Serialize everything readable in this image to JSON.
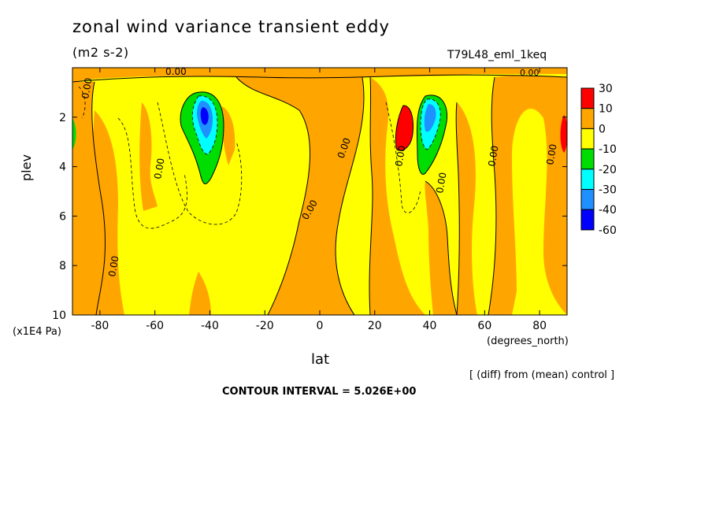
{
  "chart_data": {
    "type": "heatmap",
    "title": "zonal wind variance transient eddy",
    "units": "(m2 s-2)",
    "run_label": "T79L48_eml_1keq",
    "xlabel": "lat",
    "x_units": "(degrees_north)",
    "ylabel": "plev",
    "y_units": "(x1E4 Pa)",
    "xlim": [
      -90,
      90
    ],
    "ylim": [
      10,
      0
    ],
    "x_ticks": [
      "-80",
      "-60",
      "-40",
      "-20",
      "0",
      "20",
      "40",
      "60",
      "80"
    ],
    "y_ticks": [
      "2",
      "4",
      "6",
      "8",
      "10"
    ],
    "note": "[ (diff) from (mean) control ]",
    "contour_interval": "CONTOUR INTERVAL = 5.026E+00",
    "contour_labels": [
      "0.00",
      "0.00",
      "0.00",
      "0.00",
      "0.00",
      "0.00",
      "0.00",
      "0.00",
      "0.00",
      "0.00"
    ],
    "colorbar": {
      "levels": [
        "30",
        "10",
        "0",
        "-10",
        "-20",
        "-30",
        "-40",
        "-60"
      ],
      "colors": [
        "#ff0000",
        "#ffa500",
        "#ffff00",
        "#00dd00",
        "#00ffff",
        "#1e90ff",
        "#0000ff"
      ]
    },
    "features": [
      {
        "lat": -42,
        "plev": 2.5,
        "value": -45,
        "extent_lat": 7,
        "extent_plev": 1.5
      },
      {
        "lat": 40,
        "plev": 2.3,
        "value": -35,
        "extent_lat": 5,
        "extent_plev": 1.3
      },
      {
        "lat": 30,
        "plev": 2.6,
        "value": 25,
        "extent_lat": 3,
        "extent_plev": 1.0
      },
      {
        "lat": 88,
        "plev": 2.6,
        "value": 15,
        "extent_lat": 3,
        "extent_plev": 1.0
      }
    ]
  }
}
